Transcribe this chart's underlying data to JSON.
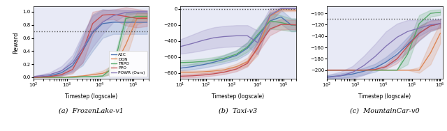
{
  "fig_width": 6.4,
  "fig_height": 1.88,
  "dpi": 100,
  "subplots": [
    {
      "title": "(a)  FrozenLake-v1",
      "xlabel": "Timestep (logscale)",
      "ylabel": "Reward",
      "xscale": "log",
      "xlim": [
        100,
        300000
      ],
      "ylim": [
        -0.02,
        1.08
      ],
      "hline": 0.7,
      "legend": true,
      "legend_loc": "lower right",
      "background": "#e8eaf6",
      "series": [
        {
          "label": "A2C",
          "color": "#4c72b0",
          "mean_x": [
            100,
            300,
            700,
            1500,
            3000,
            6000,
            12000,
            25000,
            60000,
            130000,
            260000
          ],
          "mean_y": [
            0.0,
            0.02,
            0.07,
            0.18,
            0.4,
            0.68,
            0.82,
            0.84,
            0.84,
            0.84,
            0.84
          ],
          "std": [
            0.0,
            0.01,
            0.04,
            0.1,
            0.22,
            0.28,
            0.22,
            0.18,
            0.18,
            0.18,
            0.18
          ]
        },
        {
          "label": "DQN",
          "color": "#dd8452",
          "mean_x": [
            100,
            300,
            700,
            1500,
            3000,
            6000,
            12000,
            25000,
            60000,
            130000,
            260000
          ],
          "mean_y": [
            0.0,
            0.0,
            0.0,
            0.01,
            0.02,
            0.04,
            0.06,
            0.12,
            0.5,
            0.9,
            0.92
          ],
          "std": [
            0.0,
            0.0,
            0.0,
            0.005,
            0.01,
            0.02,
            0.04,
            0.07,
            0.22,
            0.09,
            0.06
          ]
        },
        {
          "label": "TRPO",
          "color": "#55a868",
          "mean_x": [
            100,
            300,
            700,
            1500,
            3000,
            6000,
            12000,
            25000,
            60000,
            130000,
            260000
          ],
          "mean_y": [
            0.0,
            0.0,
            0.0,
            0.0,
            0.01,
            0.01,
            0.02,
            0.15,
            0.9,
            0.93,
            0.93
          ],
          "std": [
            0.0,
            0.0,
            0.0,
            0.0,
            0.005,
            0.005,
            0.01,
            0.09,
            0.08,
            0.05,
            0.05
          ]
        },
        {
          "label": "PPO",
          "color": "#c44e52",
          "mean_x": [
            100,
            300,
            700,
            1500,
            3000,
            6000,
            12000,
            25000,
            60000,
            130000,
            260000
          ],
          "mean_y": [
            0.0,
            0.01,
            0.04,
            0.12,
            0.4,
            0.82,
            0.95,
            0.96,
            0.93,
            0.9,
            0.9
          ],
          "std": [
            0.0,
            0.01,
            0.02,
            0.06,
            0.18,
            0.18,
            0.08,
            0.07,
            0.14,
            0.14,
            0.12
          ]
        },
        {
          "label": "POWR (Ours)",
          "color": "#8172b3",
          "mean_x": [
            100,
            300,
            700,
            1500,
            3000,
            6000,
            12000,
            25000,
            60000,
            130000,
            260000
          ],
          "mean_y": [
            0.01,
            0.04,
            0.1,
            0.22,
            0.44,
            0.7,
            0.84,
            0.94,
            0.99,
            1.0,
            1.0
          ],
          "std": [
            0.01,
            0.03,
            0.07,
            0.12,
            0.22,
            0.24,
            0.18,
            0.1,
            0.04,
            0.02,
            0.02
          ]
        }
      ]
    },
    {
      "title": "(b)  Taxi-v3",
      "xlabel": "Timestep (logscale)",
      "ylabel": "",
      "xscale": "log",
      "xlim": [
        10,
        300000
      ],
      "ylim": [
        -870,
        30
      ],
      "hline": 0,
      "legend": false,
      "background": "#e8eaf6",
      "series": [
        {
          "label": "A2C",
          "color": "#4c72b0",
          "mean_x": [
            10,
            30,
            80,
            200,
            500,
            1500,
            4000,
            10000,
            30000,
            80000,
            200000,
            300000
          ],
          "mean_y": [
            -740,
            -720,
            -695,
            -665,
            -630,
            -580,
            -490,
            -340,
            -150,
            -100,
            -200,
            -200
          ],
          "std": [
            30,
            35,
            40,
            45,
            50,
            60,
            70,
            90,
            110,
            90,
            80,
            80
          ]
        },
        {
          "label": "DQN",
          "color": "#dd8452",
          "mean_x": [
            10,
            30,
            80,
            200,
            500,
            1500,
            4000,
            10000,
            30000,
            80000,
            200000,
            300000
          ],
          "mean_y": [
            -790,
            -790,
            -785,
            -775,
            -760,
            -720,
            -660,
            -500,
            -90,
            -10,
            -15,
            -15
          ],
          "std": [
            20,
            20,
            20,
            22,
            25,
            35,
            50,
            80,
            70,
            20,
            15,
            15
          ]
        },
        {
          "label": "TRPO",
          "color": "#55a868",
          "mean_x": [
            10,
            30,
            80,
            200,
            500,
            1500,
            4000,
            10000,
            30000,
            80000,
            200000,
            300000
          ],
          "mean_y": [
            -670,
            -665,
            -655,
            -640,
            -615,
            -565,
            -475,
            -320,
            -150,
            -170,
            -200,
            -200
          ],
          "std": [
            30,
            32,
            35,
            38,
            42,
            50,
            60,
            90,
            100,
            90,
            80,
            80
          ]
        },
        {
          "label": "PPO",
          "color": "#c44e52",
          "mean_x": [
            10,
            30,
            80,
            200,
            500,
            1500,
            4000,
            10000,
            30000,
            80000,
            200000,
            300000
          ],
          "mean_y": [
            -840,
            -835,
            -825,
            -810,
            -790,
            -750,
            -680,
            -480,
            -250,
            -195,
            -195,
            -200
          ],
          "std": [
            20,
            20,
            22,
            22,
            25,
            30,
            40,
            70,
            80,
            65,
            60,
            60
          ]
        },
        {
          "label": "POWR (Ours)",
          "color": "#8172b3",
          "mean_x": [
            10,
            30,
            80,
            200,
            500,
            1500,
            4000,
            10000,
            30000,
            80000,
            200000,
            300000
          ],
          "mean_y": [
            -470,
            -430,
            -390,
            -360,
            -345,
            -335,
            -335,
            -420,
            -80,
            5,
            5,
            5
          ],
          "std": [
            90,
            110,
            125,
            130,
            132,
            132,
            132,
            150,
            90,
            15,
            15,
            15
          ]
        }
      ]
    },
    {
      "title": "(c)  MountainCar-v0",
      "xlabel": "Timestep (logscale)",
      "ylabel": "",
      "xscale": "log",
      "xlim": [
        100,
        1200000
      ],
      "ylim": [
        -215,
        -88
      ],
      "hline": -110,
      "legend": false,
      "background": "#e8eaf6",
      "series": [
        {
          "label": "A2C",
          "color": "#4c72b0",
          "mean_x": [
            100,
            300,
            800,
            2000,
            5000,
            12000,
            30000,
            70000,
            180000,
            450000,
            1000000
          ],
          "mean_y": [
            -212,
            -210,
            -207,
            -202,
            -196,
            -186,
            -172,
            -155,
            -135,
            -122,
            -118
          ],
          "std": [
            3,
            4,
            5,
            6,
            7,
            9,
            11,
            13,
            13,
            10,
            8
          ]
        },
        {
          "label": "DQN",
          "color": "#dd8452",
          "mean_x": [
            100,
            300,
            800,
            2000,
            5000,
            12000,
            30000,
            70000,
            180000,
            450000,
            1000000
          ],
          "mean_y": [
            -200,
            -200,
            -200,
            -200,
            -200,
            -200,
            -200,
            -200,
            -200,
            -170,
            -135
          ],
          "std": [
            0,
            0,
            0,
            0,
            0,
            0,
            0,
            0,
            5,
            20,
            18
          ]
        },
        {
          "label": "TRPO",
          "color": "#55a868",
          "mean_x": [
            100,
            300,
            800,
            2000,
            5000,
            12000,
            30000,
            70000,
            180000,
            450000,
            1000000
          ],
          "mean_y": [
            -200,
            -200,
            -200,
            -200,
            -200,
            -200,
            -200,
            -172,
            -118,
            -100,
            -98
          ],
          "std": [
            0,
            0,
            0,
            0,
            0,
            0,
            0,
            18,
            15,
            6,
            5
          ]
        },
        {
          "label": "PPO",
          "color": "#c44e52",
          "mean_x": [
            100,
            300,
            800,
            2000,
            5000,
            12000,
            30000,
            70000,
            180000,
            450000,
            1000000
          ],
          "mean_y": [
            -200,
            -200,
            -200,
            -200,
            -199,
            -194,
            -180,
            -158,
            -135,
            -122,
            -118
          ],
          "std": [
            0,
            0,
            0,
            0,
            1,
            4,
            8,
            10,
            12,
            9,
            7
          ]
        },
        {
          "label": "POWR (Ours)",
          "color": "#8172b3",
          "mean_x": [
            100,
            300,
            800,
            2000,
            5000,
            12000,
            30000,
            70000,
            180000,
            450000,
            1000000
          ],
          "mean_y": [
            -213,
            -210,
            -204,
            -192,
            -176,
            -158,
            -142,
            -132,
            -126,
            -120,
            -118
          ],
          "std": [
            4,
            7,
            11,
            17,
            22,
            26,
            24,
            20,
            14,
            9,
            7
          ]
        }
      ]
    }
  ]
}
